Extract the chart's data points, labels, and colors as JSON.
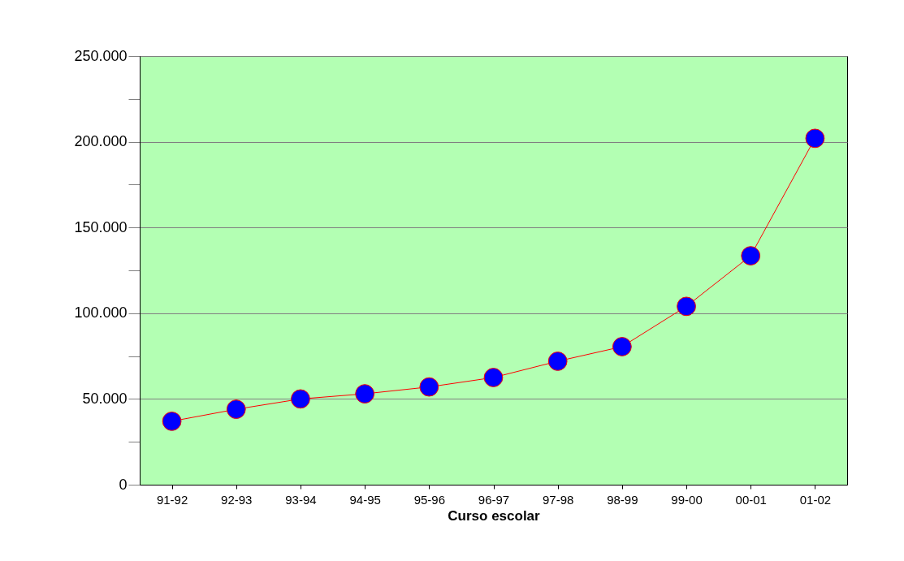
{
  "chart_data": {
    "type": "line",
    "xlabel": "Curso escolar",
    "categories": [
      "91-92",
      "92-93",
      "93-94",
      "94-95",
      "95-96",
      "96-97",
      "97-98",
      "98-99",
      "99-00",
      "00-01",
      "01-02"
    ],
    "series": [
      {
        "color": "#ff0000",
        "values": [
          37000,
          44000,
          50000,
          53000,
          57000,
          62500,
          72000,
          80500,
          104000,
          133500,
          202000
        ]
      }
    ],
    "ylim": [
      0,
      250000
    ],
    "yticks": [
      {
        "value": 0,
        "label": "0"
      },
      {
        "value": 25000,
        "label": null
      },
      {
        "value": 50000,
        "label": "50.000"
      },
      {
        "value": 75000,
        "label": null
      },
      {
        "value": 100000,
        "label": "100.000"
      },
      {
        "value": 125000,
        "label": null
      },
      {
        "value": 150000,
        "label": "150.000"
      },
      {
        "value": 175000,
        "label": null
      },
      {
        "value": 200000,
        "label": "200.000"
      },
      {
        "value": 225000,
        "label": null
      },
      {
        "value": 250000,
        "label": "250.000"
      }
    ],
    "grid": "y",
    "marker": "circle",
    "line_style": "solid"
  }
}
